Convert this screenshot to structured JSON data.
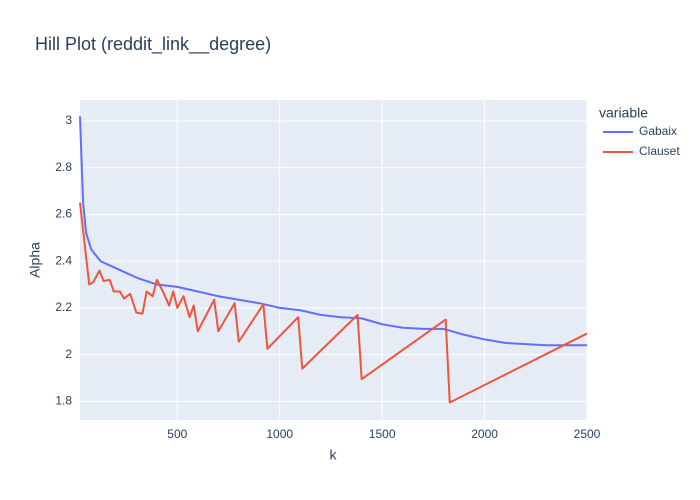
{
  "chart_data": {
    "type": "line",
    "title": "Hill Plot (reddit_link__degree)",
    "x_label": "k",
    "y_label": "Alpha",
    "legend_title": "variable",
    "xlim": [
      25,
      2500
    ],
    "ylim": [
      1.72,
      3.09
    ],
    "xticks": [
      500,
      1000,
      1500,
      2000,
      2500
    ],
    "yticks": [
      1.8,
      2,
      2.2,
      2.4,
      2.6,
      2.8,
      3
    ],
    "grid": true,
    "legend": "right",
    "series": [
      {
        "name": "Gabaix",
        "color": "#636efa",
        "x": [
          25,
          40,
          55,
          80,
          125,
          200,
          300,
          400,
          500,
          600,
          700,
          800,
          900,
          1000,
          1100,
          1200,
          1300,
          1400,
          1500,
          1600,
          1700,
          1800,
          1900,
          2000,
          2100,
          2200,
          2300,
          2400,
          2500
        ],
        "values": [
          3.02,
          2.65,
          2.52,
          2.45,
          2.4,
          2.37,
          2.33,
          2.3,
          2.29,
          2.27,
          2.25,
          2.235,
          2.22,
          2.2,
          2.19,
          2.17,
          2.16,
          2.155,
          2.13,
          2.115,
          2.11,
          2.11,
          2.085,
          2.065,
          2.05,
          2.045,
          2.04,
          2.04,
          2.04
        ]
      },
      {
        "name": "Clauset",
        "color": "#ef553b",
        "x": [
          25,
          70,
          90,
          120,
          140,
          170,
          190,
          220,
          240,
          270,
          300,
          330,
          350,
          380,
          400,
          430,
          460,
          480,
          500,
          530,
          560,
          580,
          600,
          680,
          700,
          780,
          800,
          920,
          940,
          1090,
          1110,
          1380,
          1400,
          1810,
          1830,
          2500
        ],
        "values": [
          2.65,
          2.3,
          2.31,
          2.36,
          2.315,
          2.32,
          2.27,
          2.27,
          2.24,
          2.26,
          2.18,
          2.175,
          2.27,
          2.25,
          2.32,
          2.27,
          2.21,
          2.27,
          2.2,
          2.25,
          2.16,
          2.21,
          2.1,
          2.235,
          2.1,
          2.22,
          2.055,
          2.215,
          2.025,
          2.16,
          1.94,
          2.17,
          1.895,
          2.15,
          1.795,
          2.09
        ]
      }
    ]
  }
}
